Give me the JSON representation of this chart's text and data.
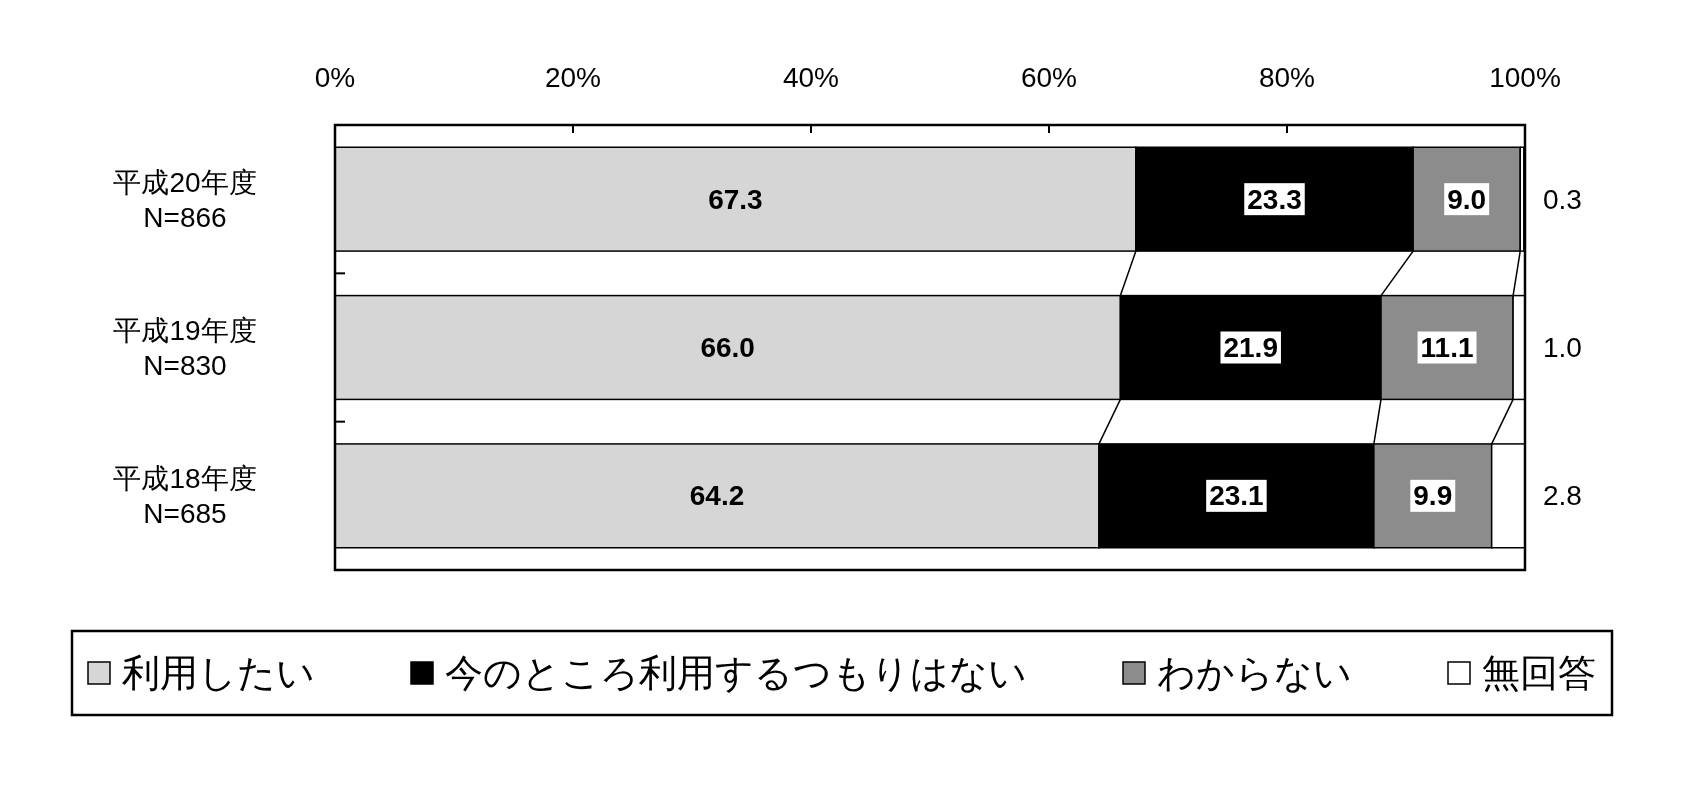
{
  "chart_data": {
    "type": "bar",
    "orientation": "horizontal",
    "stacked": true,
    "categories": [
      "平成20年度\nN=866",
      "平成19年度\nN=830",
      "平成18年度\nN=685"
    ],
    "series": [
      {
        "name": "利用したい",
        "color": "#d6d6d6",
        "values": [
          67.3,
          66.0,
          64.2
        ],
        "value_labels": [
          "67.3",
          "66.0",
          "64.2"
        ]
      },
      {
        "name": "今のところ利用するつもりはない",
        "color": "#000000",
        "values": [
          23.3,
          21.9,
          23.1
        ],
        "value_labels": [
          "23.3",
          "21.9",
          "23.1"
        ]
      },
      {
        "name": "わからない",
        "color": "#8c8c8c",
        "values": [
          9.0,
          11.1,
          9.9
        ],
        "value_labels": [
          "9.0",
          "11.1",
          "9.9"
        ]
      },
      {
        "name": "無回答",
        "color": "#ffffff",
        "values": [
          0.3,
          1.0,
          2.8
        ],
        "value_labels": [
          "0.3",
          "1.0",
          "2.8"
        ]
      }
    ],
    "xlim": [
      0,
      100
    ],
    "xticks": [
      {
        "value": 0,
        "label": "0%"
      },
      {
        "value": 20,
        "label": "20%"
      },
      {
        "value": 40,
        "label": "40%"
      },
      {
        "value": 60,
        "label": "60%"
      },
      {
        "value": 80,
        "label": "80%"
      },
      {
        "value": 100,
        "label": "100%"
      }
    ],
    "legend": "bottom"
  }
}
